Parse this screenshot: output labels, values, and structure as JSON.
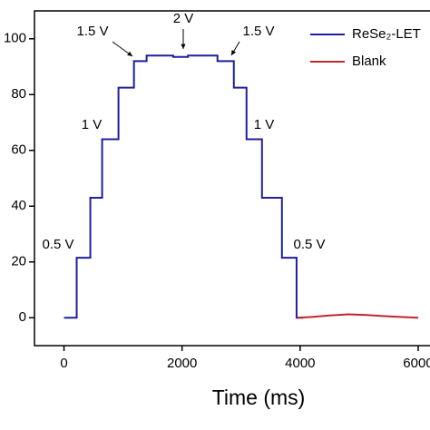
{
  "chart_data": {
    "type": "line",
    "x_label": "Time (ms)",
    "xlim": [
      -500,
      6200
    ],
    "ylim": [
      -10,
      110
    ],
    "xticks": [
      0,
      2000,
      4000,
      6000
    ],
    "yticks": [
      0,
      20,
      40,
      60,
      80,
      100
    ],
    "legend": "upper right",
    "series": [
      {
        "name": "ReSe₂-LET",
        "color": "#1f1f9e",
        "x": [
          0,
          215,
          215,
          446,
          446,
          646,
          646,
          923,
          923,
          1185,
          1185,
          1400,
          1400,
          1850,
          1850,
          2100,
          2100,
          2600,
          2600,
          2877,
          2877,
          3092,
          3092,
          3354,
          3354,
          3692,
          3692,
          3940,
          3940,
          4050
        ],
        "values": [
          0,
          0,
          21.5,
          21.5,
          43,
          43,
          64,
          64,
          82.5,
          82.5,
          92,
          92,
          94,
          94,
          93.5,
          93.5,
          94,
          94,
          92,
          92,
          82.5,
          82.5,
          64,
          64,
          43,
          43,
          21.5,
          21.5,
          0,
          0
        ]
      },
      {
        "name": "Blank",
        "color": "#c0272d",
        "x": [
          3950,
          4200,
          4500,
          4800,
          5100,
          5400,
          5700,
          6000
        ],
        "values": [
          0,
          0.3,
          0.8,
          1.2,
          1,
          0.6,
          0.3,
          0
        ]
      }
    ],
    "annotations": [
      "0.5 V",
      "1 V",
      "1.5 V",
      "2 V",
      "1.5 V",
      "1 V",
      "0.5 V"
    ]
  }
}
